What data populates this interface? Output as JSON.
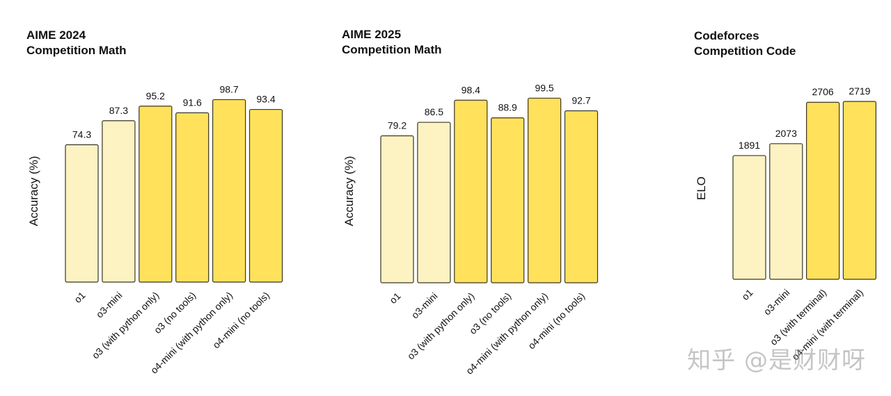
{
  "colors": {
    "light_bar": "#fdf2c2",
    "dark_bar": "#ffe15c",
    "outline": "#3b3520"
  },
  "chart_data": [
    {
      "type": "bar",
      "title_line1": "AIME 2024",
      "title_line2": "Competition Math",
      "ylabel": "Accuracy (%)",
      "categories": [
        "o1",
        "o3-mini",
        "o3 (with python only)",
        "o3 (no tools)",
        "o4-mini (with python only)",
        "o4-mini (no tools)"
      ],
      "values": [
        74.3,
        87.3,
        95.2,
        91.6,
        98.7,
        93.4
      ],
      "value_labels": [
        "74.3",
        "87.3",
        "95.2",
        "91.6",
        "98.7",
        "93.4"
      ],
      "highlight": [
        false,
        false,
        true,
        true,
        true,
        true
      ],
      "ylim": [
        0,
        100
      ],
      "grid": false
    },
    {
      "type": "bar",
      "title_line1": "AIME 2025",
      "title_line2": "Competition Math",
      "ylabel": "Accuracy (%)",
      "categories": [
        "o1",
        "o3-mini",
        "o3 (with python only)",
        "o3 (no tools)",
        "o4-mini (with python only)",
        "o4-mini (no tools)"
      ],
      "values": [
        79.2,
        86.5,
        98.4,
        88.9,
        99.5,
        92.7
      ],
      "value_labels": [
        "79.2",
        "86.5",
        "98.4",
        "88.9",
        "99.5",
        "92.7"
      ],
      "highlight": [
        false,
        false,
        true,
        true,
        true,
        true
      ],
      "ylim": [
        0,
        100
      ],
      "grid": false
    },
    {
      "type": "bar",
      "title_line1": "Codeforces",
      "title_line2": "Competition Code",
      "ylabel": "ELO",
      "categories": [
        "o1",
        "o3-mini",
        "o3 (with terminal)",
        "o4-mini (with terminal)"
      ],
      "values": [
        1891,
        2073,
        2706,
        2719
      ],
      "value_labels": [
        "1891",
        "2073",
        "2706",
        "2719"
      ],
      "highlight": [
        false,
        false,
        true,
        true
      ],
      "ylim": [
        0,
        2719
      ],
      "grid": false
    }
  ],
  "watermark": "知乎 @是财财呀"
}
